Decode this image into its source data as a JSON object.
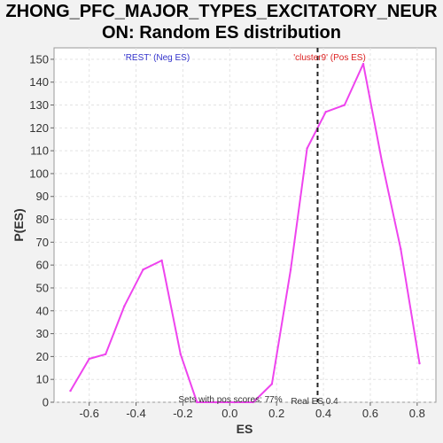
{
  "chart_data": {
    "type": "line",
    "title_line1": "ZHONG_PFC_MAJOR_TYPES_EXCITATORY_NEUR",
    "title_line2": "ON: Random ES distribution",
    "xlabel": "ES",
    "ylabel": "P(ES)",
    "xlim": [
      -0.75,
      0.88
    ],
    "ylim": [
      0,
      155
    ],
    "xticks": [
      -0.6,
      -0.4,
      -0.2,
      0.0,
      0.2,
      0.4,
      0.6,
      0.8
    ],
    "xtick_labels": [
      "-0.6",
      "-0.4",
      "-0.2",
      "0.0",
      "0.2",
      "0.4",
      "0.6",
      "0.8"
    ],
    "yticks": [
      0,
      10,
      20,
      30,
      40,
      50,
      60,
      70,
      80,
      90,
      100,
      110,
      120,
      130,
      140,
      150
    ],
    "ytick_labels": [
      "0",
      "10",
      "20",
      "30",
      "40",
      "50",
      "60",
      "70",
      "80",
      "90",
      "100",
      "110",
      "120",
      "130",
      "140",
      "150"
    ],
    "grid": true,
    "series": [
      {
        "color": "#ee44ee",
        "x": [
          -0.68,
          -0.6,
          -0.53,
          -0.45,
          -0.37,
          -0.29,
          -0.21,
          -0.14,
          -0.06,
          0.02,
          0.1,
          0.18,
          0.26,
          0.33,
          0.41,
          0.49,
          0.57,
          0.65,
          0.73,
          0.81
        ],
        "y": [
          5,
          19,
          21,
          42,
          58,
          62,
          21,
          0,
          0,
          0,
          0,
          8,
          58,
          111,
          127,
          130,
          148,
          105,
          67,
          17
        ]
      }
    ],
    "real_es": 0.375,
    "real_es_color": "#222222",
    "annotations": {
      "neg_label": "'REST' (Neg ES)",
      "neg_color": "#3333cc",
      "pos_label": "'cluster9' (Pos ES)",
      "pos_color": "#dd2222",
      "sets_text": "Sets with pos scores: 77%",
      "real_es_text": "Real ES 0.4"
    }
  }
}
